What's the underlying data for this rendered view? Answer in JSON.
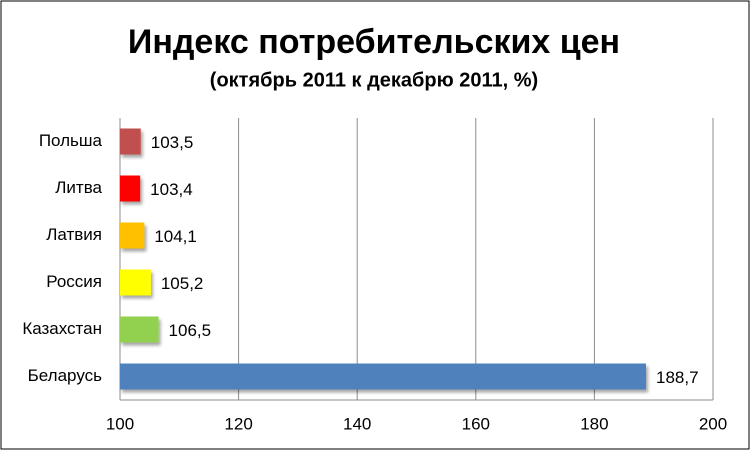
{
  "chart_data": {
    "type": "bar",
    "orientation": "horizontal",
    "title": "Индекс потребительских цен",
    "subtitle": "(октябрь 2011 к декабрю 2011, %)",
    "categories": [
      "Польша",
      "Литва",
      "Латвия",
      "Россия",
      "Казахстан",
      "Беларусь"
    ],
    "values": [
      103.5,
      103.4,
      104.1,
      105.2,
      106.5,
      188.7
    ],
    "value_labels": [
      "103,5",
      "103,4",
      "104,1",
      "105,2",
      "106,5",
      "188,7"
    ],
    "colors": [
      "#c0504d",
      "#ff0000",
      "#ffc000",
      "#ffff00",
      "#92d050",
      "#4f81bd"
    ],
    "xlim": [
      100,
      200
    ],
    "xticks": [
      100,
      120,
      140,
      160,
      180,
      200
    ],
    "grid": true
  }
}
